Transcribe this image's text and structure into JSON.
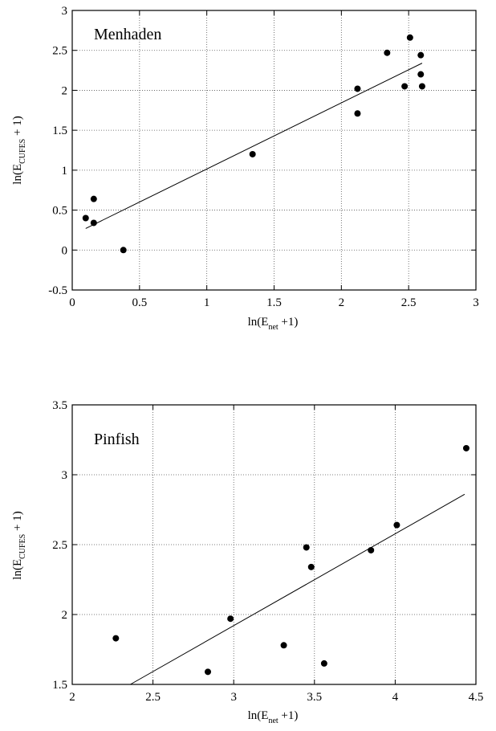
{
  "chart_data": [
    {
      "type": "scatter",
      "panel_label": "Menhaden",
      "xlabel": {
        "main": "ln(E",
        "sub": "net",
        "tail": " +1)"
      },
      "ylabel": {
        "main": "ln(E",
        "sub": "CUFES",
        "tail": " + 1)"
      },
      "xlim": [
        0,
        3
      ],
      "ylim": [
        -0.5,
        3
      ],
      "xticks": [
        "0",
        "0.5",
        "1",
        "1.5",
        "2",
        "2.5",
        "3"
      ],
      "yticks": [
        "-0.5",
        "0",
        "0.5",
        "1",
        "1.5",
        "2",
        "2.5",
        "3"
      ],
      "xtick_values": [
        0,
        0.5,
        1,
        1.5,
        2,
        2.5,
        3
      ],
      "ytick_values": [
        -0.5,
        0,
        0.5,
        1,
        1.5,
        2,
        2.5,
        3
      ],
      "grid": true,
      "points": [
        {
          "x": 0.1,
          "y": 0.4
        },
        {
          "x": 0.16,
          "y": 0.64
        },
        {
          "x": 0.16,
          "y": 0.34
        },
        {
          "x": 0.38,
          "y": 0.0
        },
        {
          "x": 1.34,
          "y": 1.2
        },
        {
          "x": 2.12,
          "y": 2.02
        },
        {
          "x": 2.12,
          "y": 1.71
        },
        {
          "x": 2.34,
          "y": 2.47
        },
        {
          "x": 2.47,
          "y": 2.05
        },
        {
          "x": 2.51,
          "y": 2.66
        },
        {
          "x": 2.59,
          "y": 2.44
        },
        {
          "x": 2.59,
          "y": 2.2
        },
        {
          "x": 2.6,
          "y": 2.05
        }
      ],
      "fit_line": {
        "x": [
          0.1,
          2.6
        ],
        "y": [
          0.27,
          2.34
        ]
      }
    },
    {
      "type": "scatter",
      "panel_label": "Pinfish",
      "xlabel": {
        "main": "ln(E",
        "sub": "net",
        "tail": " +1)"
      },
      "ylabel": {
        "main": "ln(E",
        "sub": "CUFES",
        "tail": " + 1)"
      },
      "xlim": [
        2,
        4.5
      ],
      "ylim": [
        1.5,
        3.5
      ],
      "xticks": [
        "2",
        "2.5",
        "3",
        "3.5",
        "4",
        "4.5"
      ],
      "yticks": [
        "1.5",
        "2",
        "2.5",
        "3",
        "3.5"
      ],
      "xtick_values": [
        2,
        2.5,
        3,
        3.5,
        4,
        4.5
      ],
      "ytick_values": [
        1.5,
        2,
        2.5,
        3,
        3.5
      ],
      "grid": true,
      "points": [
        {
          "x": 2.27,
          "y": 1.83
        },
        {
          "x": 2.84,
          "y": 1.59
        },
        {
          "x": 2.98,
          "y": 1.97
        },
        {
          "x": 3.31,
          "y": 1.78
        },
        {
          "x": 3.45,
          "y": 2.48
        },
        {
          "x": 3.48,
          "y": 2.34
        },
        {
          "x": 3.56,
          "y": 1.65
        },
        {
          "x": 3.85,
          "y": 2.46
        },
        {
          "x": 4.01,
          "y": 2.64
        },
        {
          "x": 4.44,
          "y": 3.19
        }
      ],
      "fit_line": {
        "x": [
          2.36,
          4.43
        ],
        "y": [
          1.5,
          2.86
        ]
      }
    }
  ]
}
